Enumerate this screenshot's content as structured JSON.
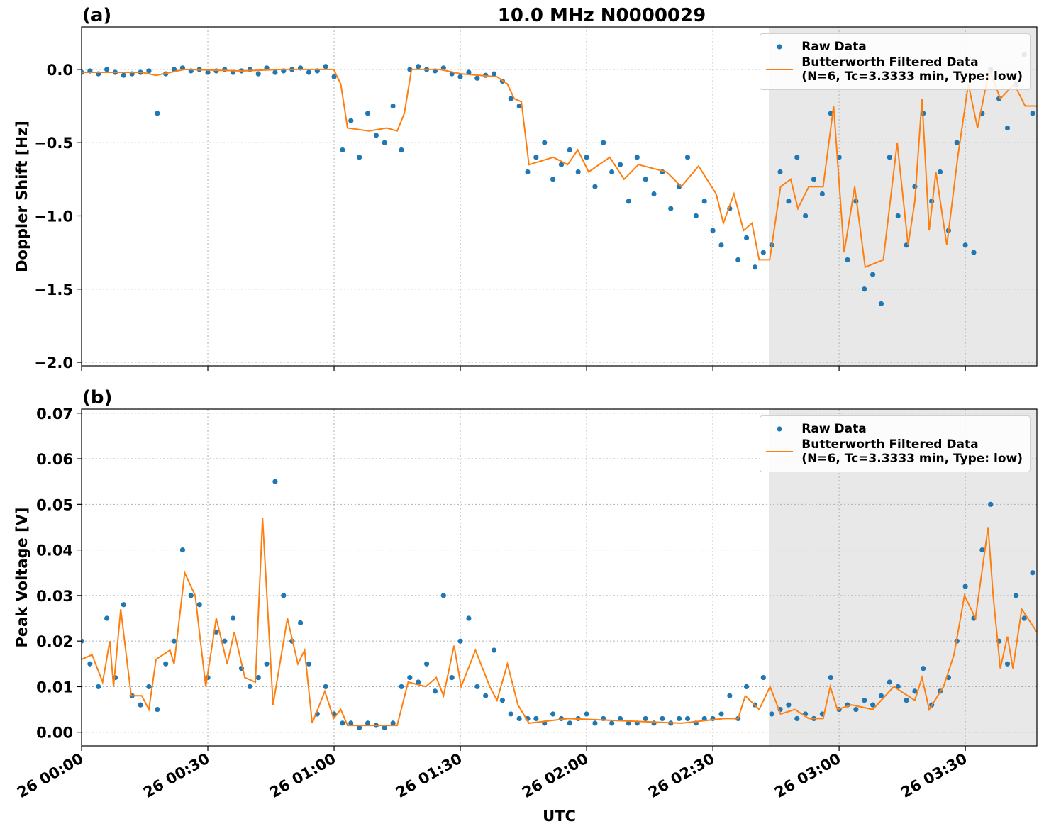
{
  "chart_data": [
    {
      "type": "scatter",
      "title": "10.0 MHz N0000029",
      "panel": "(a)",
      "ylabel": "Doppler Shift [Hz]",
      "xlim": [
        0,
        227
      ],
      "ylim": [
        -2.024,
        0.29
      ],
      "xticks": [
        0,
        30,
        60,
        90,
        120,
        150,
        180,
        210
      ],
      "yticks": [
        {
          "value": 0,
          "label": "0.0"
        },
        {
          "value": -0.5,
          "label": "−0.5"
        },
        {
          "value": -1,
          "label": "−1.0"
        },
        {
          "value": -1.5,
          "label": "−1.5"
        },
        {
          "value": -2,
          "label": "−2.0"
        }
      ],
      "grid": true,
      "legend": "upper right",
      "shade": {
        "start": 163.3,
        "end": 227,
        "color": "#e8e8e8"
      },
      "series": [
        {
          "name": "Raw Data",
          "mode": "markers",
          "color": "#1f77b4",
          "x": [
            0,
            2,
            4,
            6,
            8,
            10,
            12,
            14,
            16,
            18,
            20,
            22,
            24,
            26,
            28,
            30,
            32,
            34,
            36,
            38,
            40,
            42,
            44,
            46,
            48,
            50,
            52,
            54,
            56,
            58,
            60,
            62,
            64,
            66,
            68,
            70,
            72,
            74,
            76,
            78,
            80,
            82,
            84,
            86,
            88,
            90,
            92,
            94,
            96,
            98,
            100,
            102,
            104,
            106,
            108,
            110,
            112,
            114,
            116,
            118,
            120,
            122,
            124,
            126,
            128,
            130,
            132,
            134,
            136,
            138,
            140,
            142,
            144,
            146,
            148,
            150,
            152,
            154,
            156,
            158,
            160,
            162,
            164,
            166,
            168,
            170,
            172,
            174,
            176,
            178,
            180,
            182,
            184,
            186,
            188,
            190,
            192,
            194,
            196,
            198,
            200,
            202,
            204,
            206,
            208,
            210,
            212,
            214,
            216,
            218,
            220,
            222,
            224,
            226
          ],
          "values": [
            -0.02,
            -0.01,
            -0.03,
            0.0,
            -0.02,
            -0.04,
            -0.03,
            -0.02,
            -0.01,
            -0.3,
            -0.03,
            0.0,
            0.01,
            -0.01,
            0.0,
            -0.02,
            -0.01,
            0.0,
            -0.02,
            -0.01,
            0.0,
            -0.03,
            0.01,
            -0.02,
            -0.01,
            0.0,
            0.01,
            -0.02,
            -0.01,
            0.02,
            -0.05,
            -0.55,
            -0.35,
            -0.6,
            -0.3,
            -0.45,
            -0.5,
            -0.25,
            -0.55,
            0.0,
            0.02,
            0.0,
            -0.01,
            0.01,
            -0.03,
            -0.05,
            -0.02,
            -0.06,
            -0.04,
            -0.03,
            -0.08,
            -0.2,
            -0.25,
            -0.7,
            -0.6,
            -0.5,
            -0.75,
            -0.65,
            -0.55,
            -0.7,
            -0.6,
            -0.8,
            -0.5,
            -0.7,
            -0.65,
            -0.9,
            -0.6,
            -0.75,
            -0.85,
            -0.7,
            -0.95,
            -0.8,
            -0.6,
            -1.0,
            -0.9,
            -1.1,
            -1.2,
            -0.95,
            -1.3,
            -1.15,
            -1.35,
            -1.25,
            -1.2,
            -0.7,
            -0.9,
            -0.6,
            -1.0,
            -0.75,
            -0.85,
            -0.3,
            -0.6,
            -1.3,
            -0.9,
            -1.5,
            -1.4,
            -1.6,
            -0.6,
            -1.0,
            -1.2,
            -0.8,
            -0.3,
            -0.9,
            -0.7,
            -1.1,
            -0.5,
            -1.2,
            -1.25,
            -0.3,
            0.0,
            -0.2,
            -0.4,
            -0.1,
            0.1,
            -0.3
          ]
        },
        {
          "name": "Butterworth Filtered Data\n(N=6, Tc=3.3333 min, Type: low)",
          "mode": "line",
          "color": "#ff7f0e",
          "x": [
            0,
            14.3,
            17.7,
            24.5,
            37.9,
            48,
            59.9,
            61.6,
            63.2,
            68.3,
            72.5,
            75,
            76.7,
            78.4,
            85.1,
            90.2,
            98.7,
            101.2,
            102.8,
            104.5,
            106.3,
            112.1,
            115.5,
            117.9,
            120.5,
            125.5,
            128.9,
            132.3,
            139,
            142.5,
            146.6,
            150.8,
            152.5,
            155,
            157.3,
            159.3,
            161,
            163.5,
            166.1,
            168.5,
            170.2,
            172.8,
            176.2,
            178.7,
            181.2,
            183.7,
            186.2,
            190.5,
            193.8,
            196.4,
            198,
            199.7,
            201.4,
            203,
            205.6,
            208.2,
            210.7,
            212.9,
            215.7,
            218.3,
            221.6,
            224.2,
            227
          ],
          "values": [
            -0.02,
            -0.02,
            -0.04,
            0,
            -0.01,
            0,
            0,
            -0.1,
            -0.4,
            -0.42,
            -0.4,
            -0.42,
            -0.3,
            0,
            0,
            -0.03,
            -0.05,
            -0.1,
            -0.2,
            -0.22,
            -0.65,
            -0.6,
            -0.65,
            -0.55,
            -0.7,
            -0.6,
            -0.75,
            -0.65,
            -0.7,
            -0.8,
            -0.66,
            -0.85,
            -1.05,
            -0.85,
            -1.1,
            -1.05,
            -1.3,
            -1.3,
            -0.8,
            -0.75,
            -0.95,
            -0.8,
            -0.8,
            -0.25,
            -1.25,
            -0.8,
            -1.35,
            -1.3,
            -0.5,
            -1.2,
            -0.9,
            -0.2,
            -1.1,
            -0.7,
            -1.2,
            -0.6,
            -0.1,
            -0.4,
            0.0,
            -0.2,
            -0.1,
            -0.25,
            -0.25
          ]
        }
      ]
    },
    {
      "type": "scatter",
      "panel": "(b)",
      "ylabel": "Peak Voltage [V]",
      "xlabel": "UTC",
      "xlim": [
        0,
        227
      ],
      "ylim": [
        -0.003,
        0.0709
      ],
      "xticks": [
        {
          "value": 0,
          "label": "26 00:00"
        },
        {
          "value": 30,
          "label": "26 00:30"
        },
        {
          "value": 60,
          "label": "26 01:00"
        },
        {
          "value": 90,
          "label": "26 01:30"
        },
        {
          "value": 120,
          "label": "26 02:00"
        },
        {
          "value": 150,
          "label": "26 02:30"
        },
        {
          "value": 180,
          "label": "26 03:00"
        },
        {
          "value": 210,
          "label": "26 03:30"
        }
      ],
      "yticks": [
        {
          "value": 0,
          "label": "0.00"
        },
        0.01,
        0.02,
        0.03,
        0.04,
        0.05,
        0.06,
        0.07
      ],
      "grid": true,
      "legend": "upper right",
      "shade": {
        "start": 163.3,
        "end": 227,
        "color": "#e8e8e8"
      },
      "series": [
        {
          "name": "Raw Data",
          "mode": "markers",
          "color": "#1f77b4",
          "x": [
            0,
            2,
            4,
            6,
            8,
            10,
            12,
            14,
            16,
            18,
            20,
            22,
            24,
            26,
            28,
            30,
            32,
            34,
            36,
            38,
            40,
            42,
            44,
            46,
            48,
            50,
            52,
            54,
            56,
            58,
            60,
            62,
            64,
            66,
            68,
            70,
            72,
            74,
            76,
            78,
            80,
            82,
            84,
            86,
            88,
            90,
            92,
            94,
            96,
            98,
            100,
            102,
            104,
            106,
            108,
            110,
            112,
            114,
            116,
            118,
            120,
            122,
            124,
            126,
            128,
            130,
            132,
            134,
            136,
            138,
            140,
            142,
            144,
            146,
            148,
            150,
            152,
            154,
            156,
            158,
            160,
            162,
            164,
            166,
            168,
            170,
            172,
            174,
            176,
            178,
            180,
            182,
            184,
            186,
            188,
            190,
            192,
            194,
            196,
            198,
            200,
            202,
            204,
            206,
            208,
            210,
            212,
            214,
            216,
            218,
            220,
            222,
            224,
            226
          ],
          "values": [
            0.02,
            0.015,
            0.01,
            0.025,
            0.012,
            0.028,
            0.008,
            0.006,
            0.01,
            0.005,
            0.015,
            0.02,
            0.04,
            0.03,
            0.028,
            0.012,
            0.022,
            0.02,
            0.025,
            0.014,
            0.01,
            0.012,
            0.015,
            0.055,
            0.03,
            0.02,
            0.024,
            0.015,
            0.004,
            0.01,
            0.004,
            0.002,
            0.002,
            0.001,
            0.002,
            0.0015,
            0.001,
            0.002,
            0.01,
            0.012,
            0.011,
            0.015,
            0.009,
            0.03,
            0.012,
            0.02,
            0.025,
            0.01,
            0.008,
            0.018,
            0.007,
            0.004,
            0.003,
            0.003,
            0.003,
            0.002,
            0.004,
            0.003,
            0.002,
            0.003,
            0.004,
            0.002,
            0.003,
            0.002,
            0.003,
            0.002,
            0.002,
            0.003,
            0.002,
            0.003,
            0.002,
            0.003,
            0.003,
            0.002,
            0.003,
            0.003,
            0.004,
            0.008,
            0.003,
            0.01,
            0.006,
            0.012,
            0.004,
            0.005,
            0.006,
            0.003,
            0.004,
            0.003,
            0.004,
            0.012,
            0.005,
            0.006,
            0.005,
            0.007,
            0.006,
            0.008,
            0.011,
            0.01,
            0.007,
            0.009,
            0.014,
            0.006,
            0.009,
            0.012,
            0.02,
            0.032,
            0.025,
            0.04,
            0.05,
            0.02,
            0.015,
            0.03,
            0.025,
            0.035
          ]
        },
        {
          "name": "Butterworth Filtered Data\n(N=6, Tc=3.3333 min, Type: low)",
          "mode": "line",
          "color": "#ff7f0e",
          "x": [
            0,
            2.5,
            5,
            6.7,
            7.6,
            9.3,
            11.8,
            14.3,
            16,
            17.7,
            21,
            22,
            24.5,
            27,
            29.5,
            32,
            34.6,
            36.3,
            38.8,
            41.3,
            43,
            45.5,
            48.9,
            51.4,
            53,
            54.8,
            57.8,
            59.9,
            61.6,
            63.2,
            75,
            77.6,
            81.8,
            84.3,
            86,
            88.5,
            90.2,
            93.6,
            97,
            98.7,
            101.2,
            103.7,
            106.3,
            115.6,
            142.5,
            152.6,
            156,
            157.7,
            161,
            163.6,
            166.1,
            169.5,
            172.8,
            176.2,
            177.9,
            179.6,
            183,
            188,
            193,
            198,
            199.7,
            201.4,
            204.8,
            207.3,
            209.8,
            212.4,
            215.4,
            216.6,
            218.3,
            220,
            221.3,
            223.4,
            227
          ],
          "values": [
            0.016,
            0.017,
            0.011,
            0.02,
            0.01,
            0.027,
            0.008,
            0.008,
            0.005,
            0.016,
            0.018,
            0.015,
            0.035,
            0.03,
            0.01,
            0.025,
            0.015,
            0.022,
            0.012,
            0.011,
            0.047,
            0.006,
            0.025,
            0.015,
            0.018,
            0.002,
            0.009,
            0.003,
            0.005,
            0.0015,
            0.0015,
            0.011,
            0.01,
            0.012,
            0.008,
            0.019,
            0.01,
            0.018,
            0.01,
            0.007,
            0.015,
            0.006,
            0.002,
            0.003,
            0.002,
            0.003,
            0.003,
            0.008,
            0.005,
            0.01,
            0.004,
            0.005,
            0.003,
            0.003,
            0.01,
            0.005,
            0.006,
            0.005,
            0.01,
            0.007,
            0.012,
            0.005,
            0.01,
            0.017,
            0.03,
            0.025,
            0.045,
            0.03,
            0.014,
            0.021,
            0.014,
            0.027,
            0.022
          ]
        }
      ]
    }
  ]
}
